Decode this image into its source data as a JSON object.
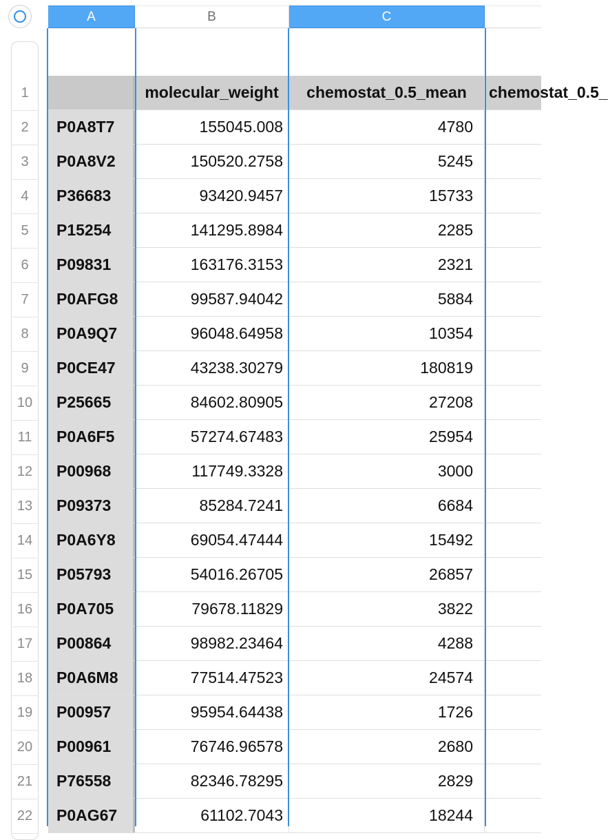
{
  "columns": [
    {
      "id": "A",
      "label": "A"
    },
    {
      "id": "B",
      "label": "B"
    },
    {
      "id": "C",
      "label": "C"
    }
  ],
  "selected_columns": [
    "A",
    "C"
  ],
  "header": {
    "a": "",
    "b": "molecular_weight",
    "c": "chemostat_0.5_mean",
    "d": "chemostat_0.5_"
  },
  "row_numbers": [
    "1",
    "2",
    "3",
    "4",
    "5",
    "6",
    "7",
    "8",
    "9",
    "10",
    "11",
    "12",
    "13",
    "14",
    "15",
    "16",
    "17",
    "18",
    "19",
    "20",
    "21",
    "22"
  ],
  "rows": [
    {
      "id": "P0A8T7",
      "mw": "155045.008",
      "chem": "4780"
    },
    {
      "id": "P0A8V2",
      "mw": "150520.2758",
      "chem": "5245"
    },
    {
      "id": "P36683",
      "mw": "93420.9457",
      "chem": "15733"
    },
    {
      "id": "P15254",
      "mw": "141295.8984",
      "chem": "2285"
    },
    {
      "id": "P09831",
      "mw": "163176.3153",
      "chem": "2321"
    },
    {
      "id": "P0AFG8",
      "mw": "99587.94042",
      "chem": "5884"
    },
    {
      "id": "P0A9Q7",
      "mw": "96048.64958",
      "chem": "10354"
    },
    {
      "id": "P0CE47",
      "mw": "43238.30279",
      "chem": "180819"
    },
    {
      "id": "P25665",
      "mw": "84602.80905",
      "chem": "27208"
    },
    {
      "id": "P0A6F5",
      "mw": "57274.67483",
      "chem": "25954"
    },
    {
      "id": "P00968",
      "mw": "117749.3328",
      "chem": "3000"
    },
    {
      "id": "P09373",
      "mw": "85284.7241",
      "chem": "6684"
    },
    {
      "id": "P0A6Y8",
      "mw": "69054.47444",
      "chem": "15492"
    },
    {
      "id": "P05793",
      "mw": "54016.26705",
      "chem": "26857"
    },
    {
      "id": "P0A705",
      "mw": "79678.11829",
      "chem": "3822"
    },
    {
      "id": "P00864",
      "mw": "98982.23464",
      "chem": "4288"
    },
    {
      "id": "P0A6M8",
      "mw": "77514.47523",
      "chem": "24574"
    },
    {
      "id": "P00957",
      "mw": "95954.64438",
      "chem": "1726"
    },
    {
      "id": "P00961",
      "mw": "76746.96578",
      "chem": "2680"
    },
    {
      "id": "P76558",
      "mw": "82346.78295",
      "chem": "2829"
    },
    {
      "id": "P0AG67",
      "mw": "61102.7043",
      "chem": "18244"
    }
  ],
  "colors": {
    "accent": "#52a8f5",
    "selection": "#3a8fdc"
  },
  "icons": {
    "corner": "circle-icon"
  }
}
